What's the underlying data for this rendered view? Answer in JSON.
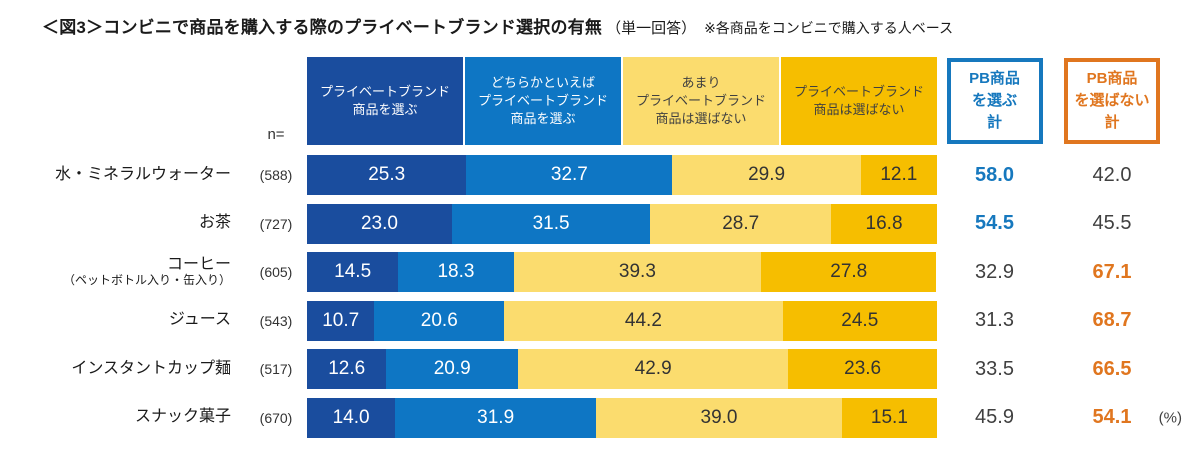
{
  "title": {
    "main": "＜図3＞コンビニで商品を購入する際のプライベートブランド選択の有無",
    "sub": "（単一回答）",
    "note": "※各商品をコンビニで購入する人ベース"
  },
  "n_label": "n=",
  "percent_label": "(%)",
  "colors": {
    "accent_blue": "#1678BE",
    "accent_orange": "#E0761F",
    "neutral_text": "#404040",
    "bar_text_light": "#FFFFFF",
    "bar_text_dark": "#333333"
  },
  "legend": [
    {
      "label": "プライベートブランド\n商品を選ぶ",
      "color": "#1A4D9E",
      "text_color": "#FFFFFF"
    },
    {
      "label": "どちらかといえば\nプライベートブランド\n商品を選ぶ",
      "color": "#0E76C4",
      "text_color": "#FFFFFF"
    },
    {
      "label": "あまり\nプライベートブランド\n商品は選ばない",
      "color": "#FBDC6E",
      "text_color": "#404040"
    },
    {
      "label": "プライベートブランド\n商品は選ばない",
      "color": "#F6BE00",
      "text_color": "#404040"
    }
  ],
  "summary_headers": [
    {
      "label": "PB商品\nを選ぶ\n計",
      "color": "#1678BE"
    },
    {
      "label": "PB商品\nを選ばない\n計",
      "color": "#E0761F"
    }
  ],
  "chart_data": {
    "type": "bar",
    "stacked": true,
    "orientation": "horizontal",
    "unit": "%",
    "xlim": [
      0,
      100
    ],
    "categories": [
      "水・ミネラルウォーター",
      "お茶",
      "コーヒー（ペットボトル入り・缶入り）",
      "ジュース",
      "インスタントカップ麺",
      "スナック菓子"
    ],
    "display_labels": [
      {
        "label": "水・ミネラルウォーター",
        "sublabel": ""
      },
      {
        "label": "お茶",
        "sublabel": ""
      },
      {
        "label": "コーヒー",
        "sublabel": "（ペットボトル入り・缶入り）"
      },
      {
        "label": "ジュース",
        "sublabel": ""
      },
      {
        "label": "インスタントカップ麺",
        "sublabel": ""
      },
      {
        "label": "スナック菓子",
        "sublabel": ""
      }
    ],
    "n": [
      "(588)",
      "(727)",
      "(605)",
      "(543)",
      "(517)",
      "(670)"
    ],
    "series": [
      {
        "name": "プライベートブランド商品を選ぶ",
        "color": "#1A4D9E",
        "text_color": "#FFFFFF",
        "values": [
          25.3,
          23.0,
          14.5,
          10.7,
          12.6,
          14.0
        ]
      },
      {
        "name": "どちらかといえばプライベートブランド商品を選ぶ",
        "color": "#0E76C4",
        "text_color": "#FFFFFF",
        "values": [
          32.7,
          31.5,
          18.3,
          20.6,
          20.9,
          31.9
        ]
      },
      {
        "name": "あまりプライベートブランド商品は選ばない",
        "color": "#FBDC6E",
        "text_color": "#333333",
        "values": [
          29.9,
          28.7,
          39.3,
          44.2,
          42.9,
          39.0
        ]
      },
      {
        "name": "プライベートブランド商品は選ばない",
        "color": "#F6BE00",
        "text_color": "#333333",
        "values": [
          12.1,
          16.8,
          27.8,
          24.5,
          23.6,
          15.1
        ]
      }
    ],
    "totals_pb_select": [
      {
        "value": "58.0",
        "emphasis": true
      },
      {
        "value": "54.5",
        "emphasis": true
      },
      {
        "value": "32.9",
        "emphasis": false
      },
      {
        "value": "31.3",
        "emphasis": false
      },
      {
        "value": "33.5",
        "emphasis": false
      },
      {
        "value": "45.9",
        "emphasis": false
      }
    ],
    "totals_pb_not_select": [
      {
        "value": "42.0",
        "emphasis": false
      },
      {
        "value": "45.5",
        "emphasis": false
      },
      {
        "value": "67.1",
        "emphasis": true
      },
      {
        "value": "68.7",
        "emphasis": true
      },
      {
        "value": "66.5",
        "emphasis": true
      },
      {
        "value": "54.1",
        "emphasis": true
      }
    ]
  }
}
